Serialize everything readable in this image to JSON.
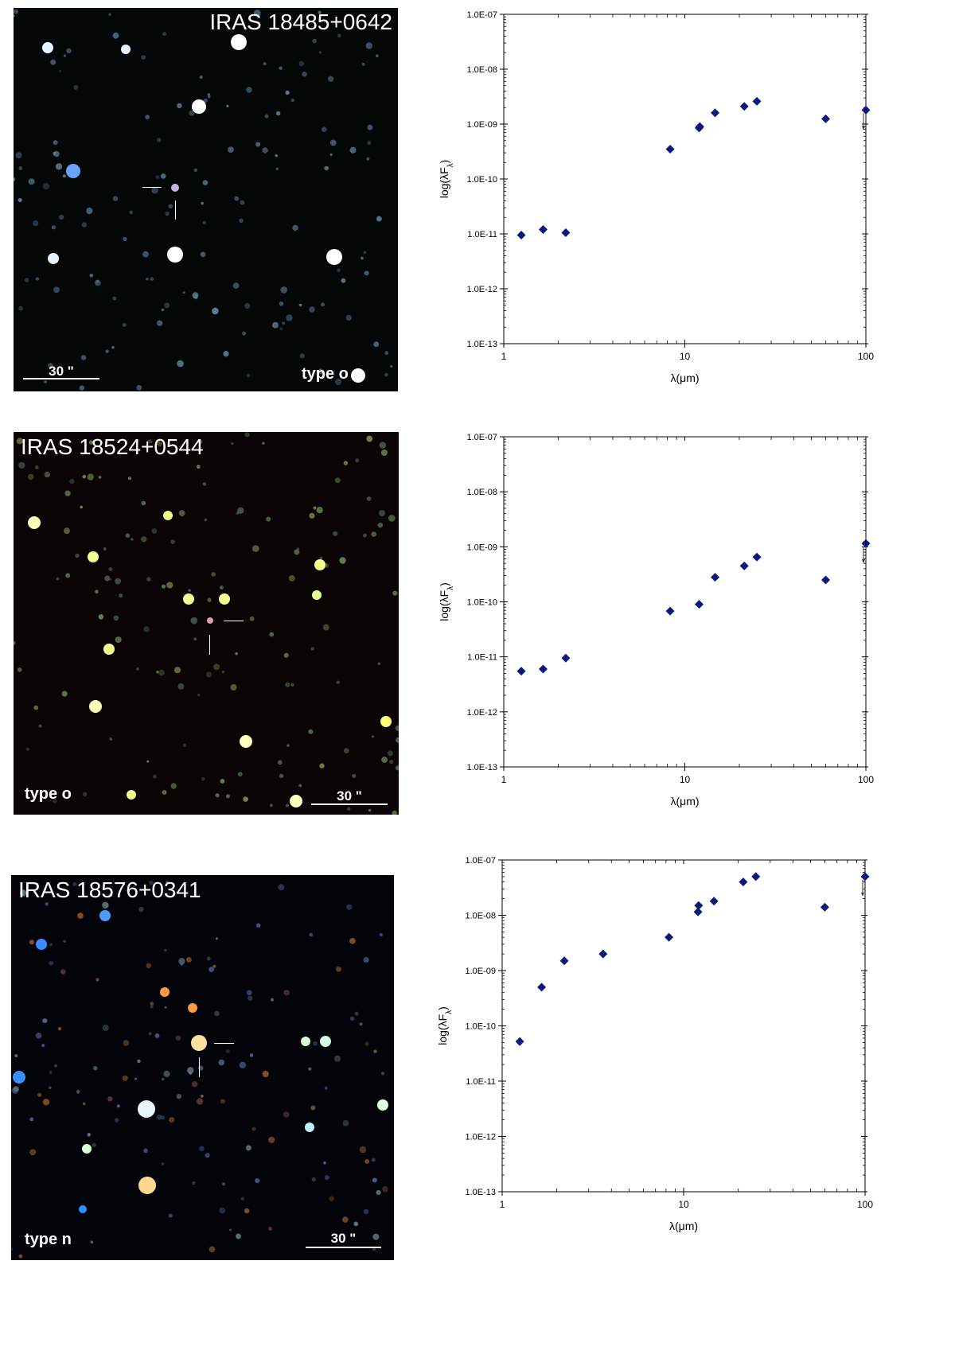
{
  "panels": [
    {
      "image": {
        "name": "IRAS 18485+0642",
        "type_label": "type o",
        "scale_label": "30 \"",
        "colors": {
          "background": "#030806"
        }
      },
      "chart_data": {
        "type": "scatter",
        "xscale": "log",
        "yscale": "log",
        "xlim": [
          1,
          100
        ],
        "ylim": [
          1e-13,
          1e-07
        ],
        "xlabel": "λ(μm)",
        "ylabel": "log(λF_λ)",
        "xticks": [
          "1",
          "10",
          "100"
        ],
        "yticks": [
          "1.0E-13",
          "1.0E-12",
          "1.0E-11",
          "1.0E-10",
          "1.0E-09",
          "1.0E-08",
          "1.0E-07"
        ],
        "marker_color": "#0b1a7a",
        "points": [
          {
            "x": 1.25,
            "y": 9.5e-12
          },
          {
            "x": 1.65,
            "y": 1.2e-11
          },
          {
            "x": 2.2,
            "y": 1.05e-11
          },
          {
            "x": 8.3,
            "y": 3.5e-10
          },
          {
            "x": 12,
            "y": 8.5e-10
          },
          {
            "x": 12.1,
            "y": 9e-10
          },
          {
            "x": 14.7,
            "y": 1.6e-09
          },
          {
            "x": 21.3,
            "y": 2.1e-09
          },
          {
            "x": 25,
            "y": 2.6e-09
          },
          {
            "x": 60,
            "y": 1.25e-09
          },
          {
            "x": 100,
            "y": 1.8e-09,
            "upper_limit": true
          }
        ]
      }
    },
    {
      "image": {
        "name": "IRAS 18524+0544",
        "type_label": "type o",
        "scale_label": "30 \"",
        "colors": {
          "background": "#0a0404"
        }
      },
      "chart_data": {
        "type": "scatter",
        "xscale": "log",
        "yscale": "log",
        "xlim": [
          1,
          100
        ],
        "ylim": [
          1e-13,
          1e-07
        ],
        "xlabel": "λ(μm)",
        "ylabel": "log(λF_λ)",
        "xticks": [
          "1",
          "10",
          "100"
        ],
        "yticks": [
          "1.0E-13",
          "1.0E-12",
          "1.0E-11",
          "1.0E-10",
          "1.0E-09",
          "1.0E-08",
          "1.0E-07"
        ],
        "marker_color": "#0b1a7a",
        "points": [
          {
            "x": 1.25,
            "y": 5.5e-12
          },
          {
            "x": 1.65,
            "y": 6e-12
          },
          {
            "x": 2.2,
            "y": 9.5e-12
          },
          {
            "x": 8.3,
            "y": 6.8e-11
          },
          {
            "x": 12,
            "y": 9e-11
          },
          {
            "x": 14.7,
            "y": 2.8e-10
          },
          {
            "x": 21.3,
            "y": 4.5e-10
          },
          {
            "x": 25,
            "y": 6.5e-10
          },
          {
            "x": 60,
            "y": 2.5e-10
          },
          {
            "x": 100,
            "y": 1.15e-09,
            "upper_limit": true
          }
        ]
      }
    },
    {
      "image": {
        "name": "IRAS 18576+0341",
        "type_label": "type n",
        "scale_label": "30 \"",
        "colors": {
          "background": "#03040a"
        }
      },
      "chart_data": {
        "type": "scatter",
        "xscale": "log",
        "yscale": "log",
        "xlim": [
          1,
          100
        ],
        "ylim": [
          1e-13,
          1e-07
        ],
        "xlabel": "λ(μm)",
        "ylabel": "log(λF_λ)",
        "xticks": [
          "1",
          "10",
          "100"
        ],
        "yticks": [
          "1.0E-13",
          "1.0E-12",
          "1.0E-11",
          "1.0E-10",
          "1.0E-09",
          "1.0E-08",
          "1.0E-07"
        ],
        "marker_color": "#0b1a7a",
        "points": [
          {
            "x": 1.25,
            "y": 5.2e-11
          },
          {
            "x": 1.65,
            "y": 5e-10
          },
          {
            "x": 2.2,
            "y": 1.5e-09
          },
          {
            "x": 3.6,
            "y": 2e-09
          },
          {
            "x": 8.3,
            "y": 4e-09
          },
          {
            "x": 12,
            "y": 1.15e-08
          },
          {
            "x": 12.1,
            "y": 1.5e-08
          },
          {
            "x": 14.7,
            "y": 1.8e-08
          },
          {
            "x": 21.3,
            "y": 4e-08
          },
          {
            "x": 25,
            "y": 5e-08
          },
          {
            "x": 60,
            "y": 1.4e-08
          },
          {
            "x": 100,
            "y": 5e-08,
            "upper_limit": true
          }
        ]
      }
    }
  ]
}
